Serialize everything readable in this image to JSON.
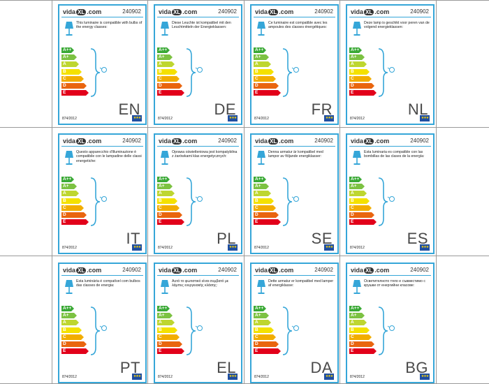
{
  "brand": {
    "name_left": "vida",
    "name_mid": "XL",
    "name_right": ".com"
  },
  "product_code": "240902",
  "regulation": "874/2012",
  "eu_flag_stars": "★★★",
  "energy_classes": [
    {
      "label": "A++",
      "color": "#3aa935"
    },
    {
      "label": "A+",
      "color": "#7cc242"
    },
    {
      "label": "A",
      "color": "#bed630"
    },
    {
      "label": "B",
      "color": "#f4e100"
    },
    {
      "label": "C",
      "color": "#f2ad00"
    },
    {
      "label": "D",
      "color": "#e9650f"
    },
    {
      "label": "E",
      "color": "#e2001a"
    }
  ],
  "labels": [
    {
      "lang": "EN",
      "text": "This luminaire is compatible with bulbs of the energy classes:"
    },
    {
      "lang": "DE",
      "text": "Diese Leuchte ist kompatibel mit den Leuchtmitteln der Energieklassen:"
    },
    {
      "lang": "FR",
      "text": "Ce luminaire est compatible avec les ampoules des classes énergétiques:"
    },
    {
      "lang": "NL",
      "text": "Deze lamp is geschikt voor peren van de volgend energieklassen:"
    },
    {
      "lang": "IT",
      "text": "Questo apparecchio d'illuminazione è compatibile con le lampadine delle classi energetiche:"
    },
    {
      "lang": "PL",
      "text": "Oprawa oświetleniowa jest kompatybilna z żarówkami klas energetycznych:"
    },
    {
      "lang": "SE",
      "text": "Denna armatur är kompatibel med lampor av följande energiklasser:"
    },
    {
      "lang": "ES",
      "text": "Esta luminaria es compatible con las bombillas de las clases de la energía:"
    },
    {
      "lang": "PT",
      "text": "Esta luminária é compatível com bulbos das classes de energia:"
    },
    {
      "lang": "EL",
      "text": "Αυτό το φωτιστικό είναι συμβατό με λάμπες ενεργειακής κλάσης:"
    },
    {
      "lang": "DA",
      "text": "Dette armatur er kompatibel med lamper af energiklasse:"
    },
    {
      "lang": "BG",
      "text": "Осветителното тяло е съвместимо с крушки от енергийни класове:"
    }
  ]
}
